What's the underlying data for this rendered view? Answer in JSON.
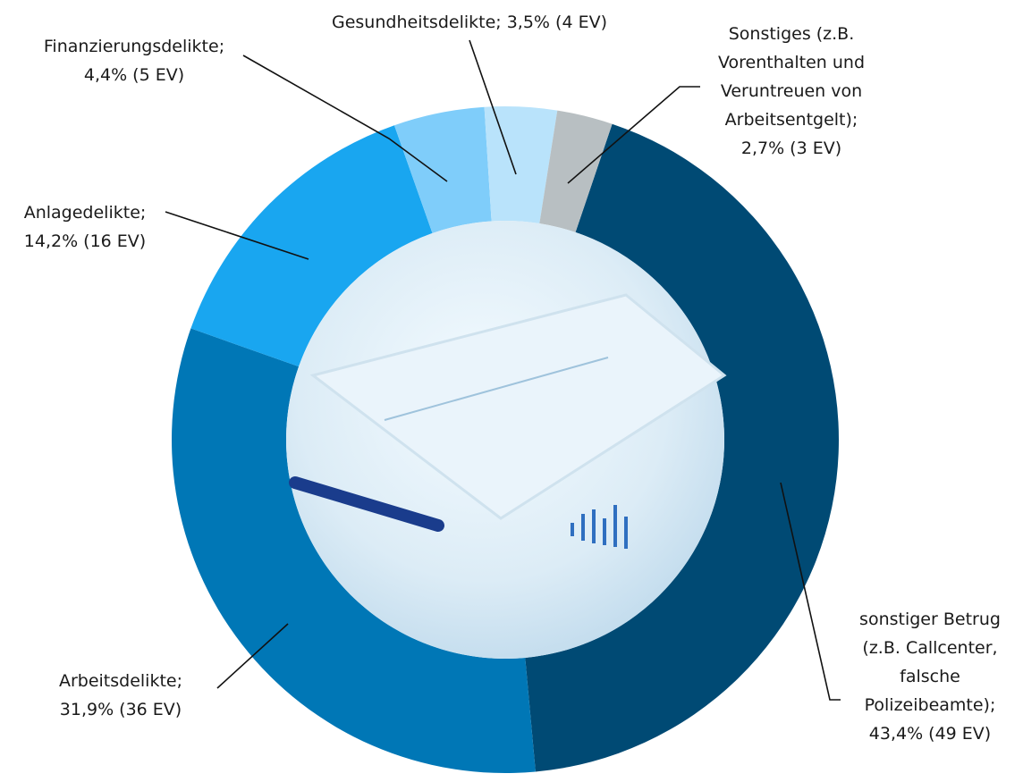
{
  "chart_data": {
    "type": "donut",
    "categories": [
      "sonstiger Betrug (z.B. Callcenter, falsche Polizeibeamte);",
      "Arbeitsdelikte;",
      "Anlagedelikte;",
      "Finanzierungsdelikte;",
      "Gesundheitsdelikte;",
      "Sonstiges (z.B. Vorenthalten und Veruntreuen von Arbeitsentgelt);"
    ],
    "values": [
      43.4,
      31.9,
      14.2,
      4.4,
      3.5,
      2.7
    ],
    "value_labels": [
      "43,4% (49 EV)",
      "31,9% (36 EV)",
      "14,2% (16 EV)",
      "4,4% (5 EV)",
      "3,5% (4 EV)",
      "2,7% (3 EV)"
    ],
    "colors": [
      "#004a74",
      "#0077b6",
      "#19a6f0",
      "#7fcdfa",
      "#b9e3fb",
      "#b8bfc2"
    ]
  }
}
